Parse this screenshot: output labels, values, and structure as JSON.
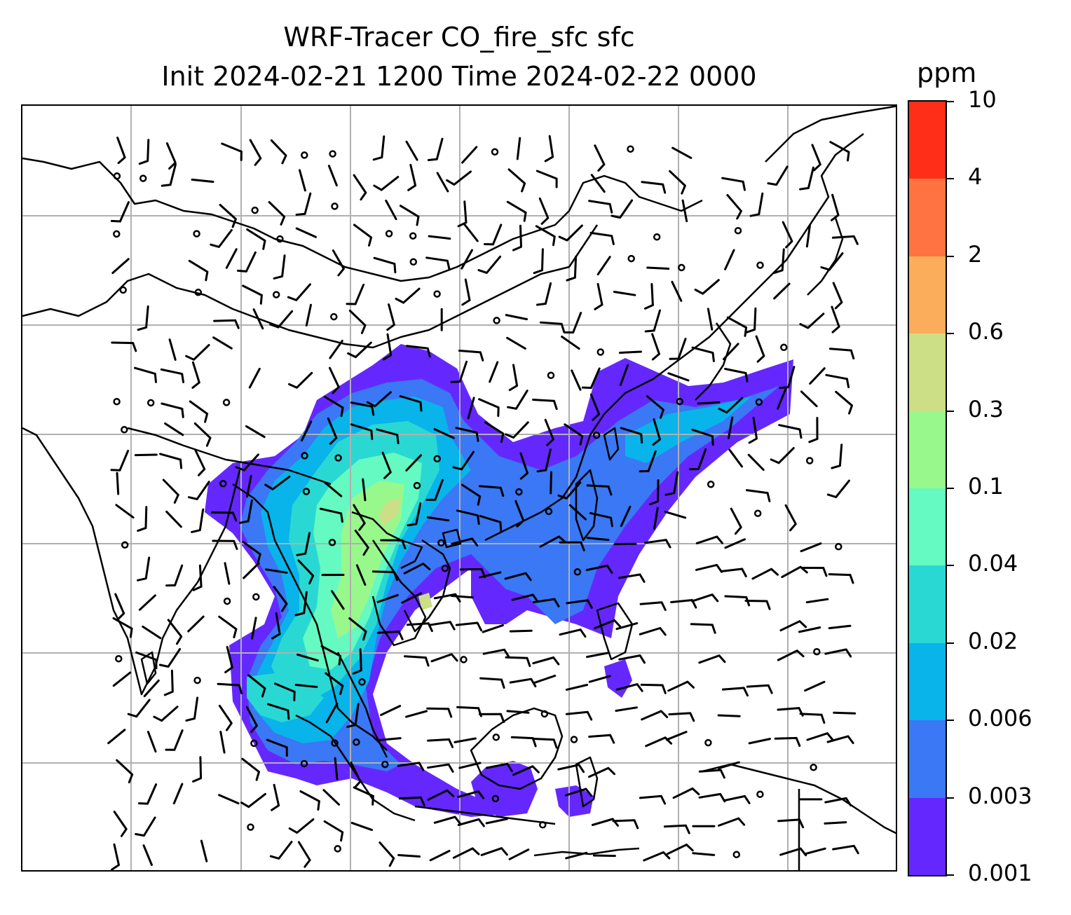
{
  "title_line1": "WRF-Tracer CO_fire_sfc sfc",
  "title_line2": "Init 2024-02-21 1200 Time 2024-02-22 0000",
  "colorbar": {
    "unit": "ppm",
    "ticks": [
      "0.001",
      "0.003",
      "0.006",
      "0.02",
      "0.04",
      "0.1",
      "0.3",
      "0.6",
      "2",
      "4",
      "10"
    ],
    "colors": [
      "#6428ff",
      "#3a78f5",
      "#08b4ea",
      "#2ad8d3",
      "#64fac2",
      "#98f88c",
      "#ccdf86",
      "#fcad5c",
      "#ff7342",
      "#ff2e18"
    ]
  },
  "map": {
    "gridline_color": "#b0b0b0",
    "coastline_color": "#000000",
    "wind_barbs": "black",
    "calm_markers": "circles"
  }
}
